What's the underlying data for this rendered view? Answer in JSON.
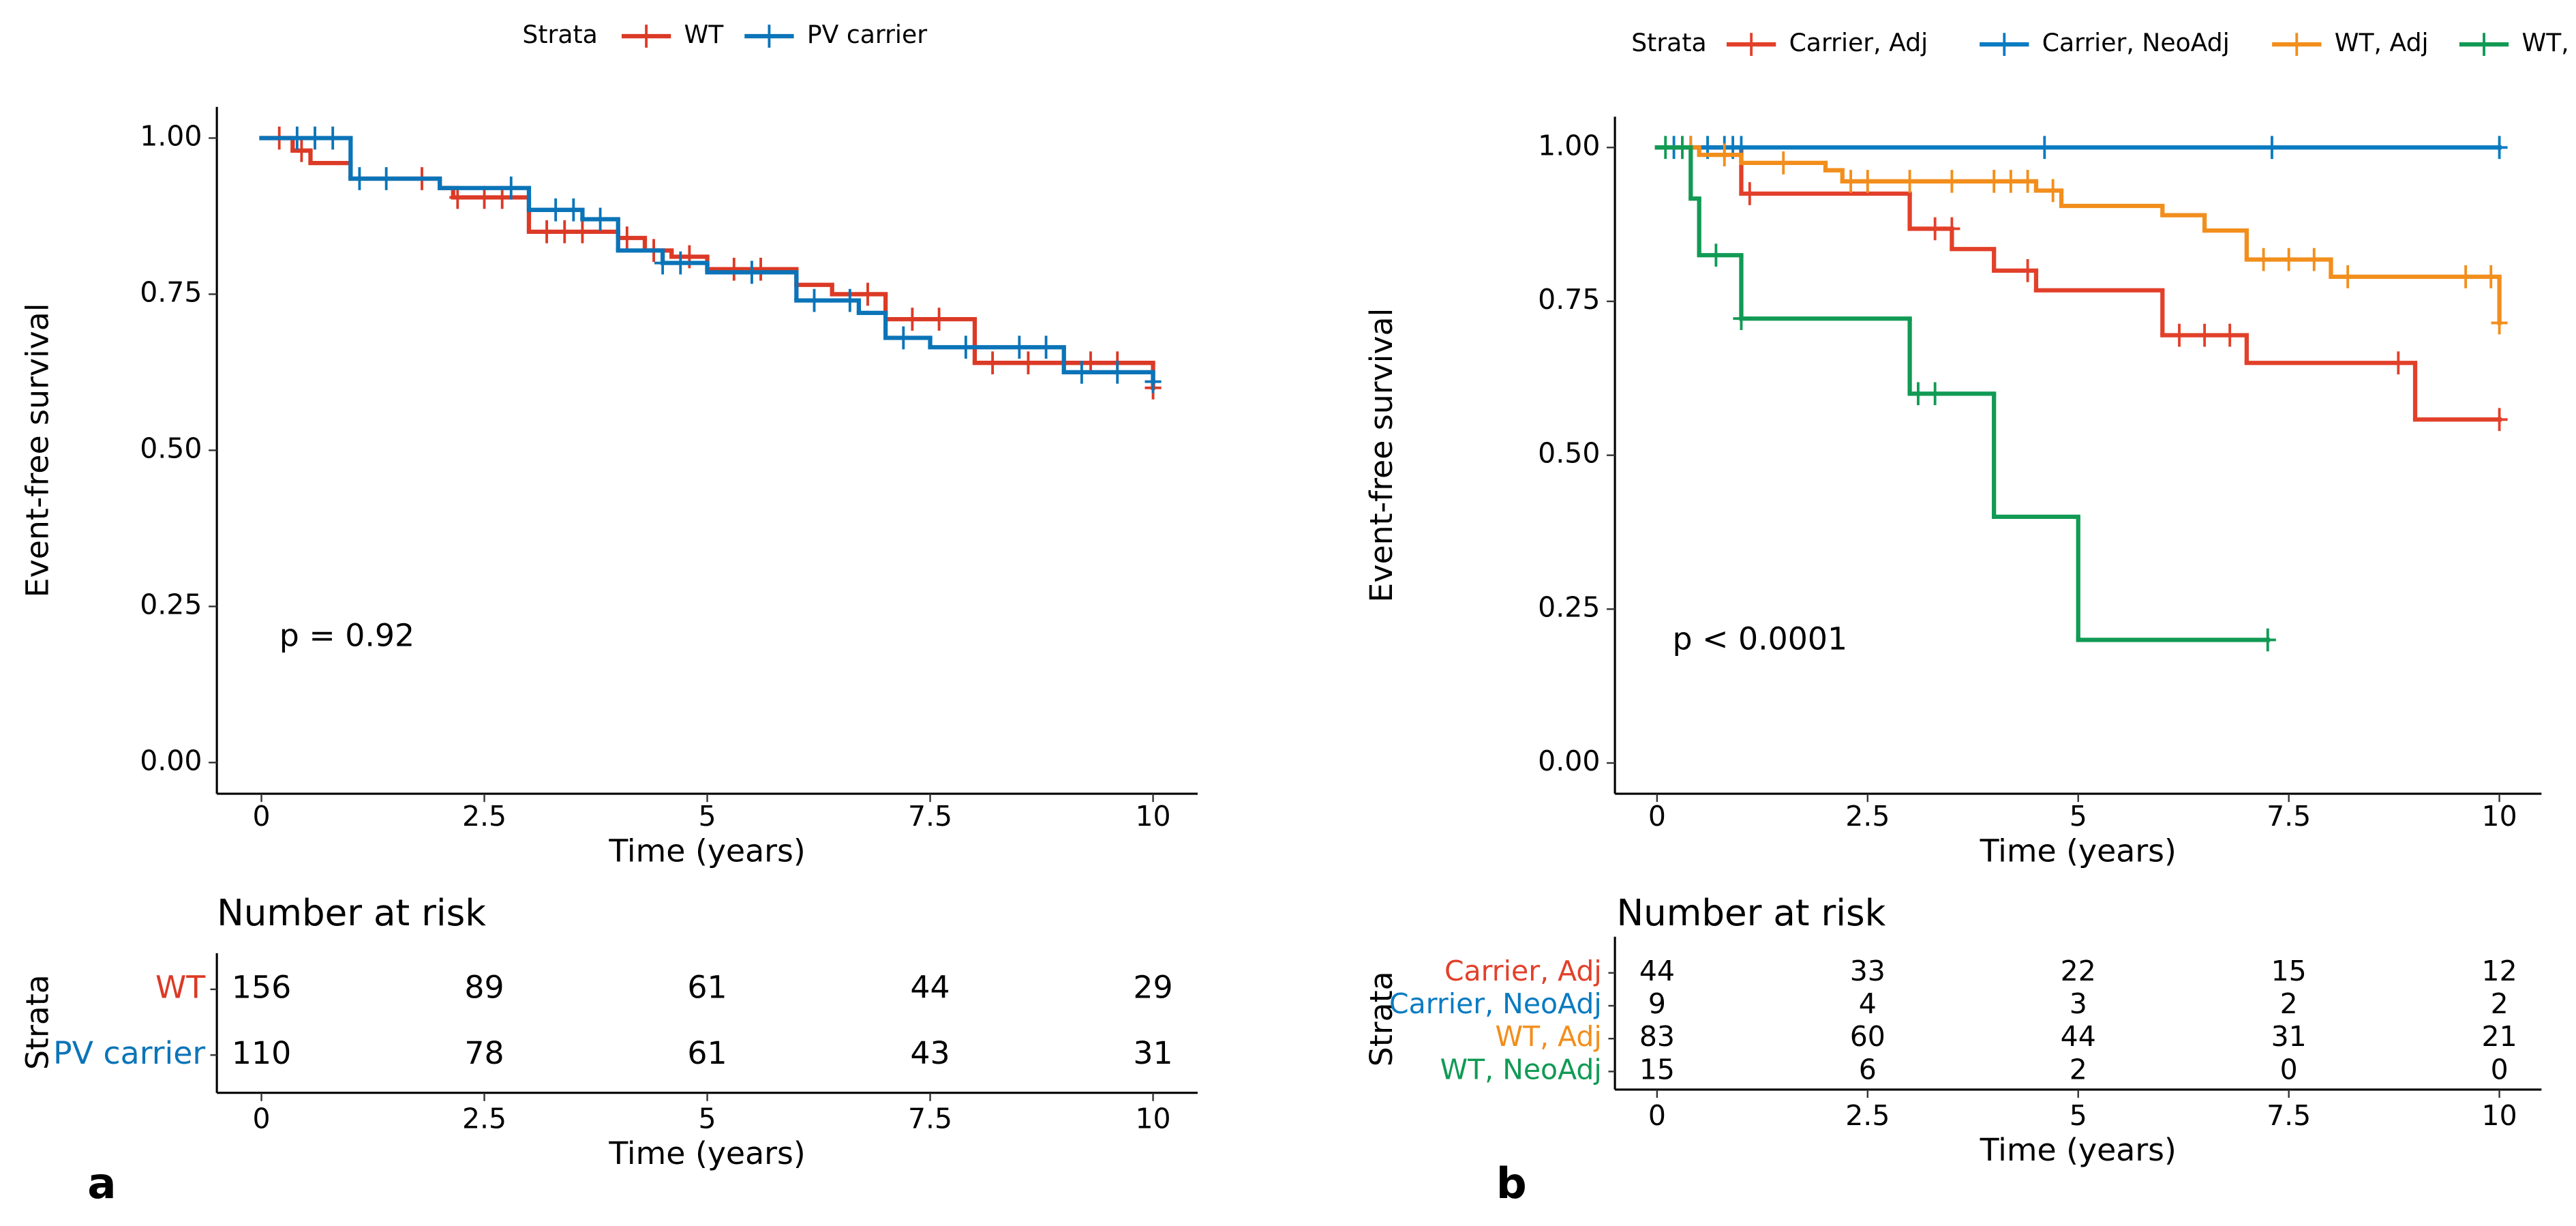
{
  "chart_data": [
    {
      "type": "step",
      "panel_label": "a",
      "legend_title": "Strata",
      "annotation": "p = 0.92",
      "xlabel": "Time (years)",
      "ylabel": "Event-free survival",
      "xlim": [
        -0.5,
        10.5
      ],
      "ylim": [
        -0.05,
        1.05
      ],
      "xticks": [
        0,
        2.5,
        5,
        7.5,
        10
      ],
      "yticks": [
        {
          "value": 0,
          "label": "0.00"
        },
        {
          "value": 0.25,
          "label": "0.25"
        },
        {
          "value": 0.5,
          "label": "0.50"
        },
        {
          "value": 0.75,
          "label": "0.75"
        },
        {
          "value": 1,
          "label": "1.00"
        }
      ],
      "series": [
        {
          "name": "WT",
          "color": "#db3a26",
          "x": [
            0,
            0.35,
            0.55,
            1.0,
            2.0,
            2.15,
            3.0,
            4.0,
            4.3,
            4.6,
            5.0,
            6.0,
            6.4,
            7.0,
            8.0,
            10.0
          ],
          "values": [
            1.0,
            0.98,
            0.96,
            0.935,
            0.92,
            0.905,
            0.85,
            0.84,
            0.82,
            0.81,
            0.79,
            0.765,
            0.75,
            0.71,
            0.64,
            0.6
          ],
          "censor_x": [
            0.2,
            0.45,
            1.8,
            2.2,
            2.5,
            2.7,
            3.2,
            3.4,
            3.6,
            4.1,
            4.4,
            4.8,
            5.3,
            5.6,
            6.8,
            7.3,
            7.6,
            8.2,
            8.6,
            9.3,
            9.6,
            10.0
          ],
          "censor_values": [
            1.0,
            0.98,
            0.935,
            0.905,
            0.905,
            0.905,
            0.85,
            0.85,
            0.85,
            0.84,
            0.82,
            0.81,
            0.79,
            0.79,
            0.75,
            0.71,
            0.71,
            0.64,
            0.64,
            0.64,
            0.64,
            0.6
          ]
        },
        {
          "name": "PV carrier",
          "color": "#0b74b8",
          "x": [
            0,
            1.0,
            2.0,
            3.0,
            3.6,
            4.0,
            4.5,
            5.0,
            6.0,
            6.7,
            7.0,
            7.5,
            9.0,
            10.0
          ],
          "values": [
            1.0,
            0.935,
            0.92,
            0.885,
            0.87,
            0.82,
            0.8,
            0.785,
            0.74,
            0.72,
            0.68,
            0.665,
            0.625,
            0.61
          ],
          "censor_x": [
            0.4,
            0.6,
            0.8,
            1.1,
            1.4,
            2.8,
            3.3,
            3.5,
            3.8,
            4.5,
            4.7,
            5.5,
            6.2,
            6.6,
            7.2,
            7.9,
            8.5,
            8.8,
            9.2,
            9.6,
            10.0
          ],
          "censor_values": [
            1.0,
            1.0,
            1.0,
            0.935,
            0.935,
            0.92,
            0.885,
            0.885,
            0.87,
            0.8,
            0.8,
            0.785,
            0.74,
            0.74,
            0.68,
            0.665,
            0.665,
            0.665,
            0.625,
            0.625,
            0.61
          ]
        }
      ],
      "risk_table": {
        "title": "Number at risk",
        "ylabel": "Strata",
        "xlabel": "Time (years)",
        "rows": [
          {
            "name": "WT",
            "color": "#db3a26",
            "values": [
              156,
              89,
              61,
              44,
              29
            ]
          },
          {
            "name": "PV carrier",
            "color": "#0b74b8",
            "values": [
              110,
              78,
              61,
              43,
              31
            ]
          }
        ]
      }
    },
    {
      "type": "step",
      "panel_label": "b",
      "legend_title": "Strata",
      "annotation": "p < 0.0001",
      "xlabel": "Time (years)",
      "ylabel": "Event-free survival",
      "xlim": [
        -0.5,
        10.5
      ],
      "ylim": [
        -0.05,
        1.05
      ],
      "xticks": [
        0,
        2.5,
        5,
        7.5,
        10
      ],
      "yticks": [
        {
          "value": 0,
          "label": "0.00"
        },
        {
          "value": 0.25,
          "label": "0.25"
        },
        {
          "value": 0.5,
          "label": "0.50"
        },
        {
          "value": 0.75,
          "label": "0.75"
        },
        {
          "value": 1,
          "label": "1.00"
        }
      ],
      "series": [
        {
          "name": "Carrier, Adj",
          "color": "#e2402a",
          "x": [
            0,
            1.0,
            3.0,
            3.5,
            4.0,
            4.5,
            6.0,
            7.0,
            9.0,
            10.0
          ],
          "values": [
            1.0,
            0.925,
            0.868,
            0.835,
            0.8,
            0.768,
            0.695,
            0.65,
            0.558,
            0.558
          ],
          "censor_x": [
            1.1,
            3.3,
            3.5,
            4.4,
            6.2,
            6.5,
            6.8,
            8.8,
            10.0
          ],
          "censor_values": [
            0.925,
            0.868,
            0.868,
            0.8,
            0.695,
            0.695,
            0.695,
            0.65,
            0.558
          ]
        },
        {
          "name": "Carrier, NeoAdj",
          "color": "#0a7bc1",
          "x": [
            0,
            10.0
          ],
          "values": [
            1.0,
            1.0
          ],
          "censor_x": [
            0.2,
            0.4,
            0.6,
            0.8,
            0.9,
            1.0,
            4.6,
            7.3,
            10.0
          ],
          "censor_values": [
            1.0,
            1.0,
            1.0,
            1.0,
            1.0,
            1.0,
            1.0,
            1.0,
            1.0
          ]
        },
        {
          "name": "WT, Adj",
          "color": "#f28e1c",
          "x": [
            0,
            0.5,
            1.0,
            2.0,
            2.2,
            4.5,
            4.8,
            6.0,
            6.5,
            7.0,
            8.0,
            10.0
          ],
          "values": [
            1.0,
            0.988,
            0.975,
            0.963,
            0.945,
            0.93,
            0.905,
            0.89,
            0.865,
            0.818,
            0.79,
            0.715
          ],
          "censor_x": [
            0.4,
            0.8,
            1.5,
            2.3,
            2.5,
            3.0,
            3.5,
            4.0,
            4.2,
            4.4,
            4.7,
            7.2,
            7.5,
            7.8,
            8.2,
            9.6,
            9.9,
            10.0
          ],
          "censor_values": [
            1.0,
            0.988,
            0.975,
            0.945,
            0.945,
            0.945,
            0.945,
            0.945,
            0.945,
            0.945,
            0.93,
            0.818,
            0.818,
            0.818,
            0.79,
            0.79,
            0.79,
            0.715
          ]
        },
        {
          "name": "WT, NeoAdj",
          "color": "#119a54",
          "x": [
            0,
            0.4,
            0.5,
            1.0,
            3.0,
            4.0,
            5.0,
            7.25
          ],
          "values": [
            1.0,
            0.917,
            0.825,
            0.722,
            0.6,
            0.4,
            0.2,
            0.2
          ],
          "censor_x": [
            0.1,
            0.3,
            0.7,
            1.0,
            3.1,
            3.3,
            7.25
          ],
          "censor_values": [
            1.0,
            1.0,
            0.825,
            0.722,
            0.6,
            0.6,
            0.2
          ]
        }
      ],
      "risk_table": {
        "title": "Number at risk",
        "ylabel": "Strata",
        "xlabel": "Time (years)",
        "rows": [
          {
            "name": "Carrier, Adj",
            "color": "#e2402a",
            "values": [
              44,
              33,
              22,
              15,
              12
            ]
          },
          {
            "name": "Carrier, NeoAdj",
            "color": "#0a7bc1",
            "values": [
              9,
              4,
              3,
              2,
              2
            ]
          },
          {
            "name": "WT, Adj",
            "color": "#f28e1c",
            "values": [
              83,
              60,
              44,
              31,
              21
            ]
          },
          {
            "name": "WT, NeoAdj",
            "color": "#119a54",
            "values": [
              15,
              6,
              2,
              0,
              0
            ]
          }
        ]
      }
    }
  ]
}
